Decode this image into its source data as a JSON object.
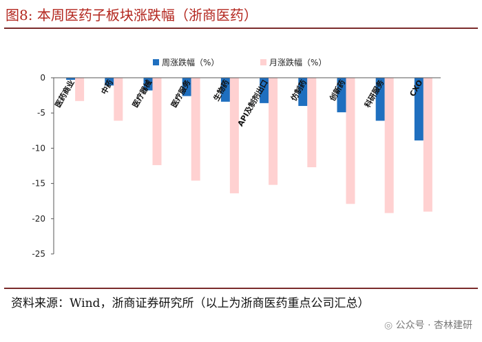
{
  "figure": {
    "title": "图8:   本周医药子板块涨跌幅（浙商医药）",
    "source": "资料来源：Wind，浙商证券研究所（以上为浙商医药重点公司汇总）",
    "watermark": "公众号 · 杏林建研",
    "watermark_icon": "wechat-icon"
  },
  "chart_data": {
    "type": "bar",
    "categories": [
      "医药商业",
      "中药",
      "医疗器械",
      "医疗服务",
      "生物药",
      "API及制剂出口",
      "仿制药",
      "创新药",
      "科研服务",
      "CXO"
    ],
    "series": [
      {
        "name": "周涨跌幅（%）",
        "color": "#1f6fbf",
        "values": [
          -0.3,
          -1.1,
          -1.8,
          -2.6,
          -3.4,
          -3.6,
          -4.0,
          -4.9,
          -6.1,
          -8.9
        ]
      },
      {
        "name": "月涨跌幅（%）",
        "color": "#ffd1d1",
        "values": [
          -3.3,
          -6.1,
          -12.4,
          -14.6,
          -16.4,
          -15.2,
          -12.7,
          -17.9,
          -19.2,
          -19.0
        ]
      }
    ],
    "ylim": [
      -25,
      0
    ],
    "yticks": [
      0,
      -5,
      -10,
      -15,
      -20,
      -25
    ],
    "legend_position": "top-center",
    "grid": false,
    "xlabel": "",
    "ylabel": ""
  }
}
